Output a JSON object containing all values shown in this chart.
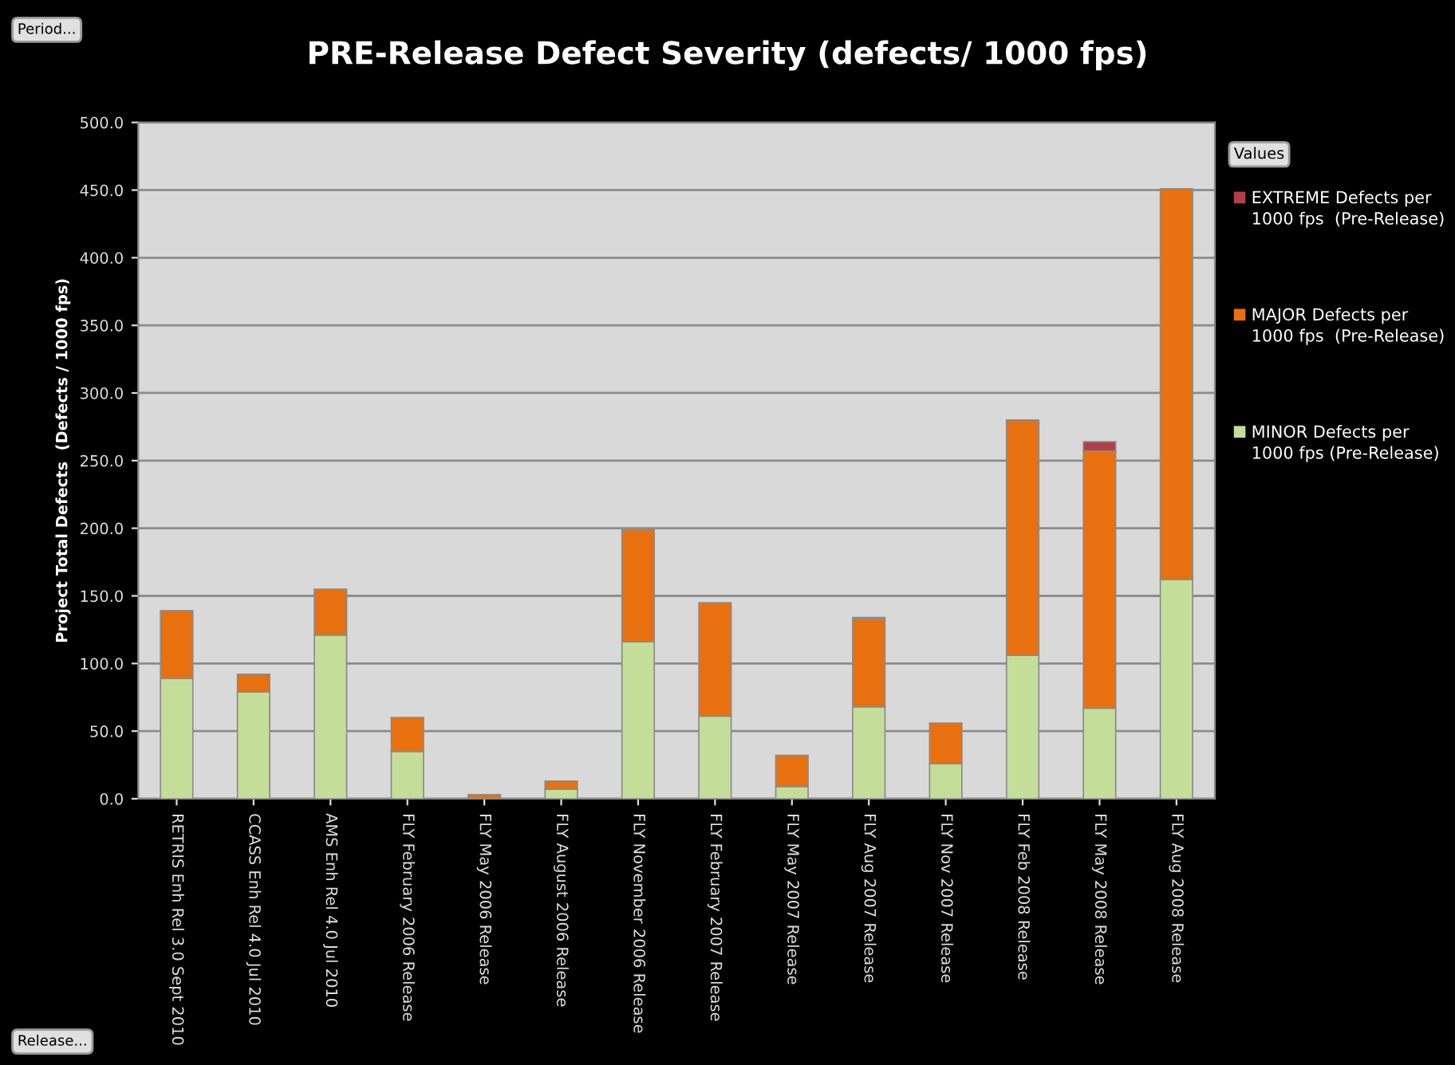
{
  "chart_data": {
    "type": "bar",
    "stacked": true,
    "title": "PRE-Release Defect Severity (defects/ 1000 fps)",
    "ylabel": "Project Total Defects  (Defects / 1000 fps)",
    "legend_title": "Values",
    "annotations": [
      "Period...",
      "Release..."
    ],
    "categories": [
      "RETRIS Enh Rel 3.0 Sept 2010",
      "CCASS Enh Rel 4.0 Jul 2010",
      "AMS Enh Rel 4.0 Jul 2010",
      "FLY February 2006 Release",
      "FLY May 2006 Release",
      "FLY August 2006 Release",
      "FLY November 2006 Release",
      "FLY February 2007 Release",
      "FLY May 2007 Release",
      "FLY Aug 2007 Release",
      "FLY Nov 2007 Release",
      "FLY Feb 2008 Release",
      "FLY May 2008 Release",
      "FLY Aug 2008 Release"
    ],
    "series": [
      {
        "name": "MINOR Defects per 1000 fps (Pre-Release)",
        "color": "#c4de9a",
        "values": [
          89,
          79,
          121,
          35,
          null,
          7,
          116,
          61,
          9,
          68,
          26,
          106,
          67,
          162
        ]
      },
      {
        "name": "MAJOR Defects per 1000 fps  (Pre-Release)",
        "color": "#e8700e",
        "values": [
          50,
          13,
          34,
          25,
          3,
          6,
          83,
          84,
          23,
          65,
          30,
          174,
          190,
          289
        ]
      },
      {
        "name": "EXTREME Defects per 1000 fps  (Pre-Release)",
        "color": "#b0404a",
        "values": [
          null,
          null,
          null,
          null,
          null,
          null,
          null,
          null,
          null,
          1,
          null,
          null,
          7,
          null
        ]
      }
    ],
    "ylim": [
      0,
      500
    ],
    "yticks": [
      {
        "value": 0,
        "label": "0.0"
      },
      {
        "value": 50,
        "label": "50.0"
      },
      {
        "value": 100,
        "label": "100.0"
      },
      {
        "value": 150,
        "label": "150.0"
      },
      {
        "value": 200,
        "label": "200.0"
      },
      {
        "value": 250,
        "label": "250.0"
      },
      {
        "value": 300,
        "label": "300.0"
      },
      {
        "value": 350,
        "label": "350.0"
      },
      {
        "value": 400,
        "label": "400.0"
      },
      {
        "value": 450,
        "label": "450.0"
      },
      {
        "value": 500,
        "label": "500.0"
      }
    ],
    "grid": "y",
    "legend": "right"
  }
}
